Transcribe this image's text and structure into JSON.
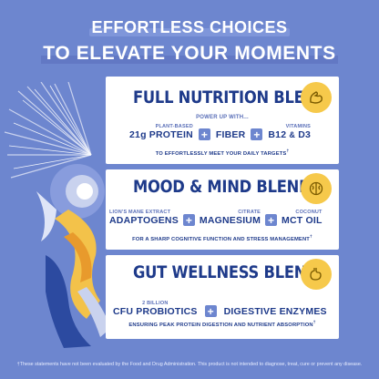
{
  "headline": {
    "line1": "EFFORTLESS CHOICES",
    "line2": "TO ELEVATE YOUR MOMENTS"
  },
  "sections": [
    {
      "title": "FULL NUTRITION BLEND",
      "icon": "flexed-arm-icon",
      "intro": "POWER UP WITH...",
      "items": [
        {
          "kicker": "PLANT-BASED",
          "label": "21g PROTEIN"
        },
        {
          "kicker": "",
          "label": "FIBER"
        },
        {
          "kicker": "VITAMINS",
          "label": "B12",
          "label2": "D3",
          "joiner": "&"
        }
      ],
      "tagline": "TO EFFORTLESSLY MEET YOUR DAILY TARGETS"
    },
    {
      "title": "MOOD & MIND BLEND",
      "icon": "brain-icon",
      "items": [
        {
          "kicker": "LION'S MANE EXTRACT",
          "label": "ADAPTOGENS"
        },
        {
          "kicker": "CITRATE",
          "label": "MAGNESIUM"
        },
        {
          "kicker": "COCONUT",
          "label": "MCT OIL"
        }
      ],
      "tagline": "FOR A SHARP COGNITIVE FUNCTION AND STRESS MANAGEMENT"
    },
    {
      "title": "GUT WELLNESS BLEND",
      "icon": "stomach-icon",
      "items": [
        {
          "kicker": "2 BILLION",
          "label": "CFU PROBIOTICS"
        },
        {
          "kicker": "",
          "label": "DIGESTIVE ENZYMES"
        }
      ],
      "tagline": "ENSURING PEAK PROTEIN DIGESTION AND NUTRIENT ABSORPTION"
    }
  ],
  "footnote_mark": "†",
  "disclaimer": "†These statements have not been evaluated by the Food and Drug Administration. This product is not intended to diagnose, treat, cure or prevent any disease.",
  "colors": {
    "background": "#6d86cf",
    "navy": "#1e3a8a",
    "badge": "#f6c94b"
  }
}
